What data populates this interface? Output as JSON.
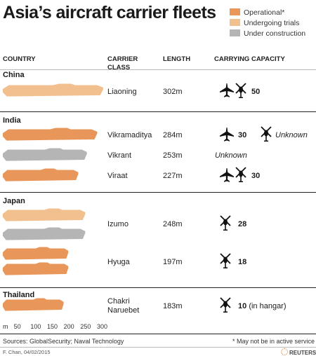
{
  "title": "Asia’s aircraft carrier fleets",
  "legend": [
    {
      "label": "Operational*",
      "color": "#e8965a"
    },
    {
      "label": "Undergoing trials",
      "color": "#f2c08e"
    },
    {
      "label": "Under construction",
      "color": "#b5b5b5"
    }
  ],
  "headers": {
    "country": "COUNTRY",
    "carrier_class_1": "CARRIER",
    "carrier_class_2": "CLASS",
    "length": "LENGTH",
    "capacity": "CARRYING CAPACITY"
  },
  "countries": [
    "China",
    "India",
    "Japan",
    "Thailand"
  ],
  "carriers": [
    {
      "country": "China",
      "class": "Liaoning",
      "length": "302m",
      "length_m": 302,
      "status": "Undergoing trials",
      "capacity": "50"
    },
    {
      "country": "India",
      "class": "Vikramaditya",
      "length": "284m",
      "length_m": 284,
      "status": "Operational*",
      "capacity": "30",
      "capacity_extra": "Unknown"
    },
    {
      "country": "India",
      "class": "Vikrant",
      "length": "253m",
      "length_m": 253,
      "status": "Under construction",
      "capacity": "Unknown"
    },
    {
      "country": "India",
      "class": "Viraat",
      "length": "227m",
      "length_m": 227,
      "status": "Operational*",
      "capacity": "30"
    },
    {
      "country": "Japan",
      "class": "Izumo",
      "length": "248m",
      "length_m": 248,
      "status": "Undergoing trials / Under construction",
      "capacity": "28"
    },
    {
      "country": "Japan",
      "class": "Hyuga",
      "length": "197m",
      "length_m": 197,
      "status": "Operational*",
      "capacity": "18"
    },
    {
      "country": "Thailand",
      "class": "Chakri Naruebet",
      "class_line1": "Chakri",
      "class_line2": "Naruebet",
      "length": "183m",
      "length_m": 183,
      "status": "Operational*",
      "capacity": "10",
      "capacity_note": "(in hangar)"
    }
  ],
  "chart_data": {
    "type": "bar",
    "title": "Asia’s aircraft carrier fleets",
    "xlabel": "",
    "x_unit": "m",
    "xlim": [
      0,
      300
    ],
    "x_ticks": [
      50,
      100,
      150,
      200,
      250,
      300
    ],
    "categories": [
      "Liaoning",
      "Vikramaditya",
      "Vikrant",
      "Viraat",
      "Izumo",
      "Izumo",
      "Hyuga",
      "Hyuga",
      "Chakri Naruebet"
    ],
    "values": [
      302,
      284,
      253,
      227,
      248,
      248,
      197,
      197,
      183
    ],
    "status": [
      "Undergoing trials",
      "Operational*",
      "Under construction",
      "Operational*",
      "Undergoing trials",
      "Under construction",
      "Operational*",
      "Operational*",
      "Operational*"
    ]
  },
  "axis": {
    "unit": "m",
    "ticks": [
      "50",
      "100",
      "150",
      "200",
      "250",
      "300"
    ]
  },
  "footer": {
    "sources": "Sources: GlobalSecurity; Naval Technology",
    "note": "* May not be in active service",
    "credit": "F. Chan, 04/02/2015",
    "brand": "REUTERS"
  },
  "colors": {
    "operational": "#e8965a",
    "trials": "#f2c08e",
    "construction": "#b5b5b5"
  },
  "icons": {
    "jet": "fighter-jet-icon",
    "heli": "helicopter-icon"
  }
}
